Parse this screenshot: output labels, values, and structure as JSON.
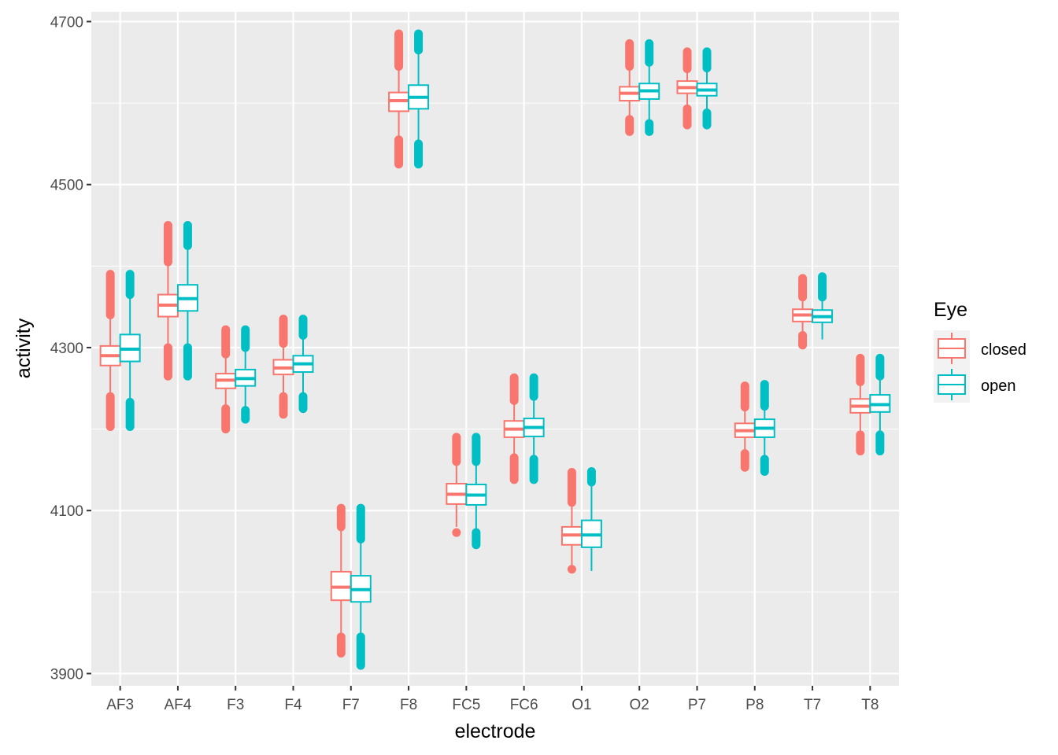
{
  "chart_data": {
    "type": "boxplot",
    "title": "",
    "xlabel": "electrode",
    "ylabel": "activity",
    "ylim": [
      3885,
      4700
    ],
    "yticks": [
      3900,
      4100,
      4300,
      4500,
      4700
    ],
    "categories": [
      "AF3",
      "AF4",
      "F3",
      "F4",
      "F7",
      "F8",
      "FC5",
      "FC6",
      "O1",
      "O2",
      "P7",
      "P8",
      "T7",
      "T8"
    ],
    "legend": {
      "title": "Eye",
      "position": "right"
    },
    "series": [
      {
        "name": "closed",
        "color": "#F8766D",
        "boxes": [
          {
            "min": 4245,
            "q1": 4278,
            "median": 4290,
            "q3": 4302,
            "max": 4340,
            "outliers_low": [
              4203,
              4240
            ],
            "outliers_high": [
              4340,
              4390
            ]
          },
          {
            "min": 4300,
            "q1": 4338,
            "median": 4352,
            "q3": 4365,
            "max": 4405,
            "outliers_low": [
              4265,
              4300
            ],
            "outliers_high": [
              4405,
              4450
            ]
          },
          {
            "min": 4228,
            "q1": 4250,
            "median": 4260,
            "q3": 4268,
            "max": 4290,
            "outliers_low": [
              4200,
              4225
            ],
            "outliers_high": [
              4292,
              4322
            ]
          },
          {
            "min": 4243,
            "q1": 4267,
            "median": 4275,
            "q3": 4285,
            "max": 4305,
            "outliers_low": [
              4218,
              4240
            ],
            "outliers_high": [
              4305,
              4335
            ]
          },
          {
            "min": 3945,
            "q1": 3990,
            "median": 4006,
            "q3": 4025,
            "max": 4080,
            "outliers_low": [
              3925,
              3945
            ],
            "outliers_high": [
              4080,
              4103
            ]
          },
          {
            "min": 4555,
            "q1": 4590,
            "median": 4603,
            "q3": 4613,
            "max": 4645,
            "outliers_low": [
              4525,
              4555
            ],
            "outliers_high": [
              4645,
              4685
            ]
          },
          {
            "min": 4080,
            "q1": 4108,
            "median": 4120,
            "q3": 4133,
            "max": 4160,
            "outliers_low": [
              4073
            ],
            "outliers_high": [
              4160,
              4190
            ]
          },
          {
            "min": 4165,
            "q1": 4190,
            "median": 4200,
            "q3": 4210,
            "max": 4235,
            "outliers_low": [
              4138,
              4165
            ],
            "outliers_high": [
              4235,
              4263
            ]
          },
          {
            "min": 4033,
            "q1": 4058,
            "median": 4070,
            "q3": 4080,
            "max": 4110,
            "outliers_low": [
              4028
            ],
            "outliers_high": [
              4110,
              4147
            ]
          },
          {
            "min": 4585,
            "q1": 4603,
            "median": 4612,
            "q3": 4620,
            "max": 4645,
            "outliers_low": [
              4565,
              4580
            ],
            "outliers_high": [
              4645,
              4673
            ]
          },
          {
            "min": 4595,
            "q1": 4612,
            "median": 4619,
            "q3": 4627,
            "max": 4642,
            "outliers_low": [
              4573,
              4593
            ],
            "outliers_high": [
              4642,
              4663
            ]
          },
          {
            "min": 4172,
            "q1": 4190,
            "median": 4198,
            "q3": 4207,
            "max": 4225,
            "outliers_low": [
              4153,
              4170
            ],
            "outliers_high": [
              4227,
              4253
            ]
          },
          {
            "min": 4318,
            "q1": 4332,
            "median": 4340,
            "q3": 4347,
            "max": 4362,
            "outliers_low": [
              4303,
              4315
            ],
            "outliers_high": [
              4362,
              4385
            ]
          },
          {
            "min": 4195,
            "q1": 4220,
            "median": 4228,
            "q3": 4237,
            "max": 4258,
            "outliers_low": [
              4173,
              4193
            ],
            "outliers_high": [
              4258,
              4287
            ]
          }
        ]
      },
      {
        "name": "open",
        "color": "#00BFC4",
        "boxes": [
          {
            "min": 4235,
            "q1": 4283,
            "median": 4298,
            "q3": 4316,
            "max": 4365,
            "outliers_low": [
              4203,
              4233
            ],
            "outliers_high": [
              4365,
              4390
            ]
          },
          {
            "min": 4300,
            "q1": 4345,
            "median": 4360,
            "q3": 4377,
            "max": 4425,
            "outliers_low": [
              4265,
              4300
            ],
            "outliers_high": [
              4425,
              4450
            ]
          },
          {
            "min": 4225,
            "q1": 4253,
            "median": 4262,
            "q3": 4273,
            "max": 4300,
            "outliers_low": [
              4212,
              4223
            ],
            "outliers_high": [
              4300,
              4322
            ]
          },
          {
            "min": 4243,
            "q1": 4270,
            "median": 4280,
            "q3": 4290,
            "max": 4315,
            "outliers_low": [
              4225,
              4240
            ],
            "outliers_high": [
              4315,
              4335
            ]
          },
          {
            "min": 3945,
            "q1": 3988,
            "median": 4003,
            "q3": 4020,
            "max": 4065,
            "outliers_low": [
              3910,
              3945
            ],
            "outliers_high": [
              4065,
              4103
            ]
          },
          {
            "min": 4550,
            "q1": 4593,
            "median": 4607,
            "q3": 4622,
            "max": 4665,
            "outliers_low": [
              4525,
              4550
            ],
            "outliers_high": [
              4665,
              4685
            ]
          },
          {
            "min": 4075,
            "q1": 4107,
            "median": 4119,
            "q3": 4132,
            "max": 4160,
            "outliers_low": [
              4058,
              4073
            ],
            "outliers_high": [
              4160,
              4190
            ]
          },
          {
            "min": 4165,
            "q1": 4191,
            "median": 4202,
            "q3": 4213,
            "max": 4240,
            "outliers_low": [
              4138,
              4163
            ],
            "outliers_high": [
              4240,
              4263
            ]
          },
          {
            "min": 4026,
            "q1": 4055,
            "median": 4070,
            "q3": 4088,
            "max": 4135,
            "outliers_low": [],
            "outliers_high": [
              4135,
              4148
            ]
          },
          {
            "min": 4578,
            "q1": 4605,
            "median": 4615,
            "q3": 4624,
            "max": 4650,
            "outliers_low": [
              4565,
              4575
            ],
            "outliers_high": [
              4650,
              4673
            ]
          },
          {
            "min": 4590,
            "q1": 4609,
            "median": 4616,
            "q3": 4624,
            "max": 4643,
            "outliers_low": [
              4573,
              4588
            ],
            "outliers_high": [
              4643,
              4663
            ]
          },
          {
            "min": 4165,
            "q1": 4190,
            "median": 4201,
            "q3": 4212,
            "max": 4228,
            "outliers_low": [
              4148,
              4163
            ],
            "outliers_high": [
              4228,
              4255
            ]
          },
          {
            "min": 4310,
            "q1": 4331,
            "median": 4338,
            "q3": 4346,
            "max": 4362,
            "outliers_low": [],
            "outliers_high": [
              4362,
              4387
            ]
          },
          {
            "min": 4195,
            "q1": 4221,
            "median": 4230,
            "q3": 4242,
            "max": 4265,
            "outliers_low": [
              4173,
              4193
            ],
            "outliers_high": [
              4265,
              4287
            ]
          }
        ]
      }
    ]
  }
}
